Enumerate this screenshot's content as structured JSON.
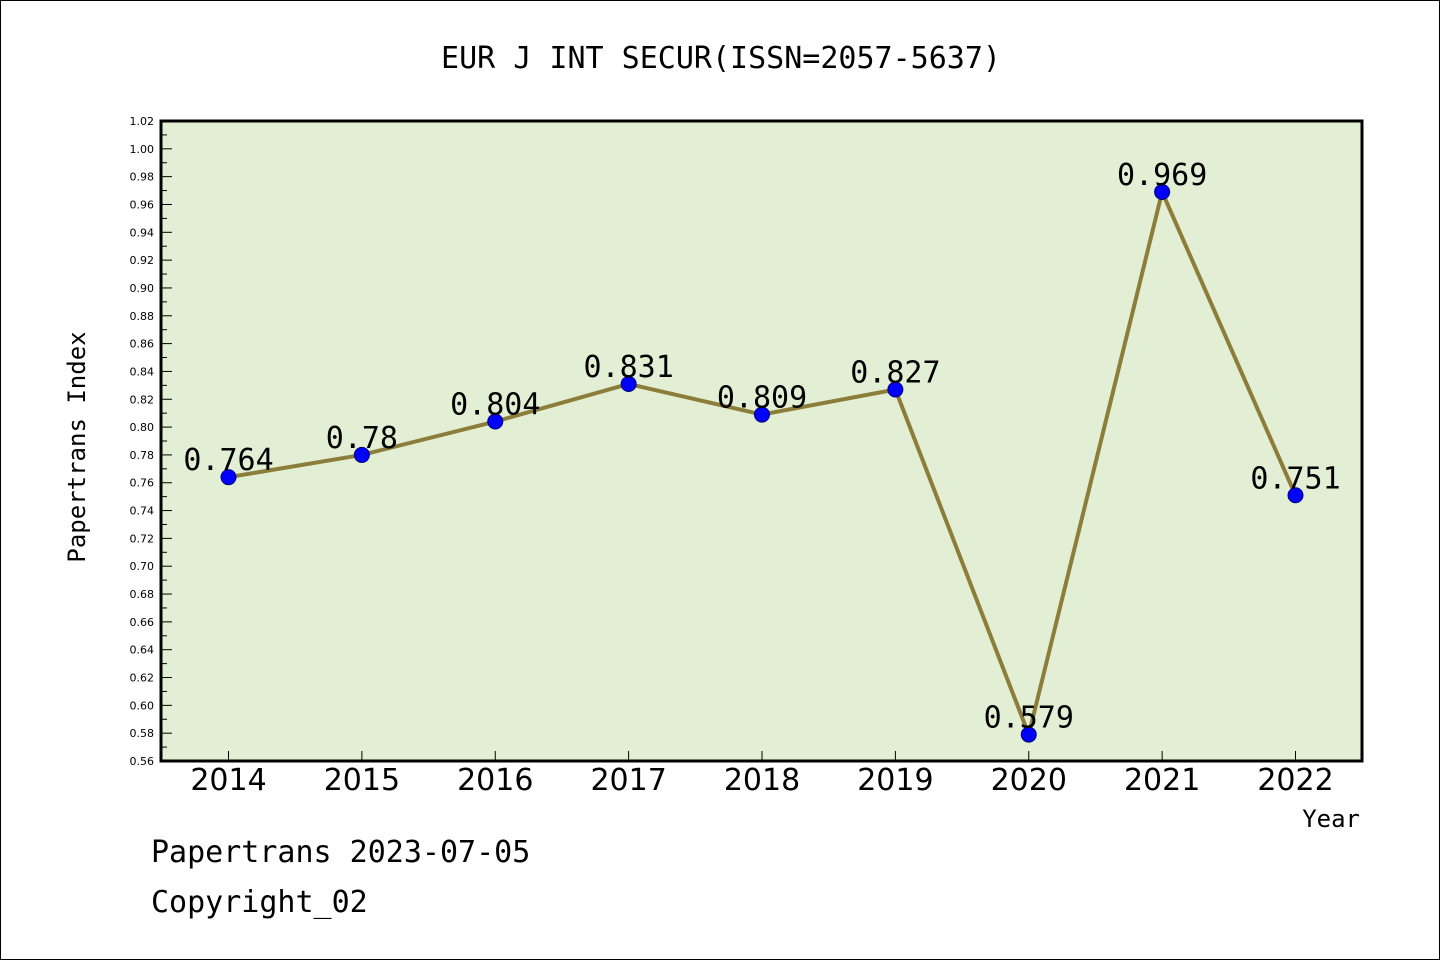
{
  "chart_data": {
    "type": "line",
    "title": "EUR J INT SECUR(ISSN=2057-5637)",
    "xlabel": "Year",
    "ylabel": "Papertrans Index",
    "categories": [
      "2014",
      "2015",
      "2016",
      "2017",
      "2018",
      "2019",
      "2020",
      "2021",
      "2022"
    ],
    "values": [
      0.764,
      0.78,
      0.804,
      0.831,
      0.809,
      0.827,
      0.579,
      0.969,
      0.751
    ],
    "data_labels": [
      "0.764",
      "0.78",
      "0.804",
      "0.831",
      "0.809",
      "0.827",
      "0.579",
      "0.969",
      "0.751"
    ],
    "ylim": [
      0.56,
      1.02
    ],
    "yticks": [
      "0.56",
      "0.58",
      "0.60",
      "0.62",
      "0.64",
      "0.66",
      "0.68",
      "0.70",
      "0.72",
      "0.74",
      "0.76",
      "0.78",
      "0.80",
      "0.82",
      "0.84",
      "0.86",
      "0.88",
      "0.90",
      "0.92",
      "0.94",
      "0.96",
      "0.98",
      "1.00",
      "1.02"
    ],
    "grid": false,
    "colors": {
      "plot_background": "#e2efd5",
      "line": "#8c7d3a",
      "marker": "#0000ff"
    }
  },
  "footer": {
    "line1": "Papertrans 2023-07-05",
    "line2": "Copyright_02"
  }
}
